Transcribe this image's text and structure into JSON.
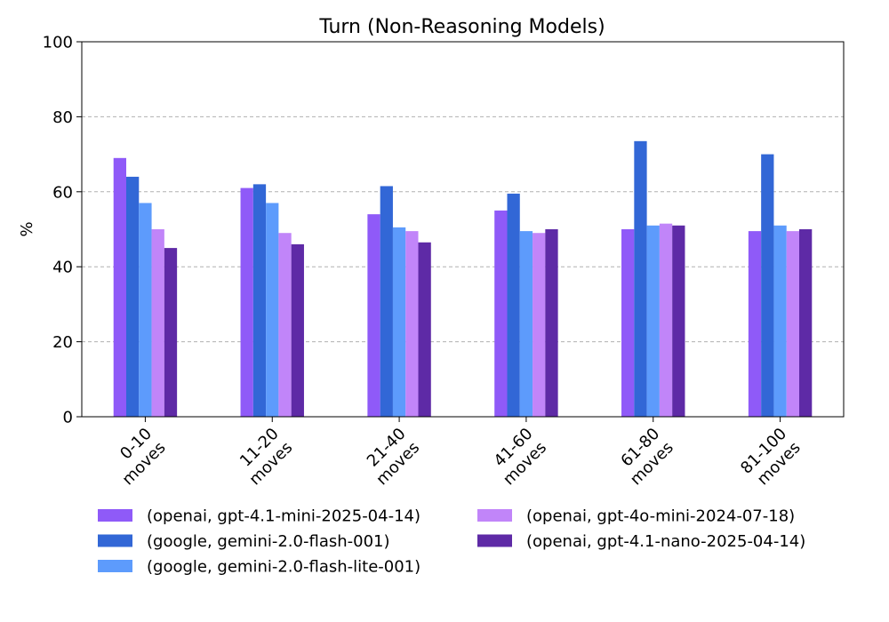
{
  "chart_data": {
    "type": "bar",
    "title": "Turn (Non-Reasoning Models)",
    "xlabel": "",
    "ylabel": "%",
    "ylim": [
      0,
      100
    ],
    "yticks": [
      0,
      20,
      40,
      60,
      80,
      100
    ],
    "grid": "horizontal dashed",
    "legend_position": "bottom",
    "categories": [
      [
        "0-10",
        "moves"
      ],
      [
        "11-20",
        "moves"
      ],
      [
        "21-40",
        "moves"
      ],
      [
        "41-60",
        "moves"
      ],
      [
        "61-80",
        "moves"
      ],
      [
        "81-100",
        "moves"
      ]
    ],
    "series": [
      {
        "name": "(openai, gpt-4.1-mini-2025-04-14)",
        "color": "#8f5af8",
        "values": [
          69,
          61,
          54,
          55,
          50,
          49.5
        ]
      },
      {
        "name": "(google, gemini-2.0-flash-001)",
        "color": "#3267d6",
        "values": [
          64,
          62,
          61.5,
          59.5,
          73.5,
          70
        ]
      },
      {
        "name": "(google, gemini-2.0-flash-lite-001)",
        "color": "#5d9bfc",
        "values": [
          57,
          57,
          50.5,
          49.5,
          51,
          51
        ]
      },
      {
        "name": "(openai, gpt-4o-mini-2024-07-18)",
        "color": "#c185f9",
        "values": [
          50,
          49,
          49.5,
          49,
          51.5,
          49.5
        ]
      },
      {
        "name": "(openai, gpt-4.1-nano-2025-04-14)",
        "color": "#5e2aa6",
        "values": [
          45,
          46,
          46.5,
          50,
          51,
          50
        ]
      }
    ]
  }
}
